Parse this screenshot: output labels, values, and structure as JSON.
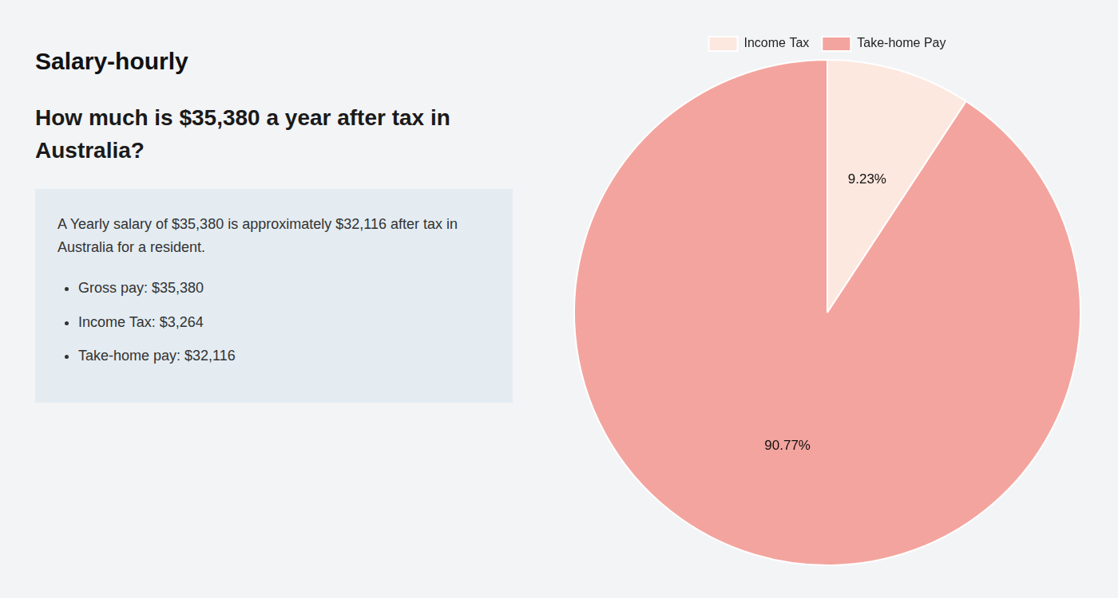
{
  "chart_data": {
    "type": "pie",
    "title": [
      "How much is $35,380 a year after tax in",
      "Australia?"
    ],
    "annotations": [
      "Salary-hourly",
      "A Yearly salary of $35,380 is approximately $32,116 after tax in",
      "Australia for a resident.",
      "Gross pay: $35,380",
      "Income Tax: $3,264",
      "Take-home pay: $32,116"
    ],
    "categories": [
      "Income Tax",
      "Take-home Pay"
    ],
    "values": [
      9.23,
      90.77
    ],
    "value_labels": [
      "9.23%",
      "90.77%"
    ],
    "colors": [
      "#fce8df",
      "#f4a49e"
    ],
    "data_labels": true,
    "legend": "top"
  }
}
